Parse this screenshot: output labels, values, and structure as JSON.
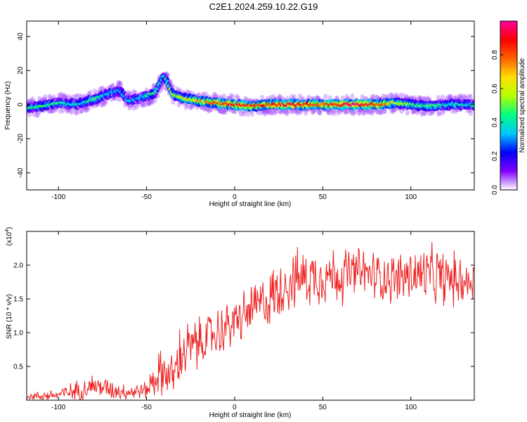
{
  "title": "C2E1.2024.259.10.22.G19",
  "chart_data": [
    {
      "type": "heatmap",
      "xlabel": "Height of straight line (km)",
      "ylabel": "Frequency (Hz)",
      "xlim": [
        -118,
        136
      ],
      "ylim": [
        -50,
        49
      ],
      "xticks": [
        -100,
        -50,
        0,
        50,
        100
      ],
      "yticks": [
        -40,
        -20,
        0,
        20,
        40
      ],
      "colorbar": {
        "label": "Normalized spectral amplitude",
        "range": [
          0,
          1
        ],
        "ticks": [
          "0.0",
          "0.2",
          "0.4",
          "0.6",
          "0.8"
        ],
        "tick_values": [
          0.0,
          0.2,
          0.4,
          0.6,
          0.8
        ],
        "colors": [
          "#ffffff",
          "#8000ff",
          "#0000ff",
          "#00c8ff",
          "#00ff80",
          "#b4ff00",
          "#ffe000",
          "#ff6000",
          "#ff0000",
          "#ff00a0"
        ]
      },
      "ridge": [
        {
          "x": -118,
          "f": -2,
          "a": 0.4
        },
        {
          "x": -110,
          "f": -1,
          "a": 0.45
        },
        {
          "x": -100,
          "f": 1,
          "a": 0.4
        },
        {
          "x": -90,
          "f": 0,
          "a": 0.35
        },
        {
          "x": -80,
          "f": 3,
          "a": 0.45
        },
        {
          "x": -70,
          "f": 7,
          "a": 0.35
        },
        {
          "x": -65,
          "f": 8,
          "a": 0.3
        },
        {
          "x": -60,
          "f": 2,
          "a": 0.3
        },
        {
          "x": -50,
          "f": 5,
          "a": 0.4
        },
        {
          "x": -45,
          "f": 7,
          "a": 0.45
        },
        {
          "x": -40,
          "f": 17,
          "a": 0.4
        },
        {
          "x": -35,
          "f": 6,
          "a": 0.5
        },
        {
          "x": -30,
          "f": 4,
          "a": 0.6
        },
        {
          "x": -20,
          "f": 2,
          "a": 0.7
        },
        {
          "x": -10,
          "f": 1,
          "a": 0.8
        },
        {
          "x": 0,
          "f": 0,
          "a": 0.85
        },
        {
          "x": 10,
          "f": -1,
          "a": 0.8
        },
        {
          "x": 20,
          "f": 0,
          "a": 0.85
        },
        {
          "x": 30,
          "f": 0,
          "a": 0.9
        },
        {
          "x": 40,
          "f": 0,
          "a": 0.85
        },
        {
          "x": 50,
          "f": 0,
          "a": 0.8
        },
        {
          "x": 60,
          "f": 0,
          "a": 0.9
        },
        {
          "x": 70,
          "f": 0,
          "a": 0.95
        },
        {
          "x": 80,
          "f": 0,
          "a": 0.85
        },
        {
          "x": 90,
          "f": 1,
          "a": 0.6
        },
        {
          "x": 100,
          "f": 0,
          "a": 0.5
        },
        {
          "x": 110,
          "f": -1,
          "a": 0.45
        },
        {
          "x": 120,
          "f": 0,
          "a": 0.4
        },
        {
          "x": 136,
          "f": 0,
          "a": 0.4
        }
      ]
    },
    {
      "type": "line",
      "xlabel": "Height of straight line (km)",
      "ylabel": "SNR (10 * v/v)",
      "y_multiplier": "(x10",
      "y_multiplier_exp": "4",
      "y_multiplier_close": ")",
      "xlim": [
        -118,
        136
      ],
      "ylim": [
        0,
        2.5
      ],
      "xticks": [
        -100,
        -50,
        0,
        50,
        100
      ],
      "yticks": [
        0.5,
        1.0,
        1.5,
        2.0
      ],
      "ytick_labels": [
        "0.5",
        "1.0",
        "1.5",
        "2.0"
      ],
      "color": "#ee2222",
      "envelope": [
        {
          "x": -118,
          "y": 0.05,
          "n": 0.04
        },
        {
          "x": -100,
          "y": 0.08,
          "n": 0.08
        },
        {
          "x": -90,
          "y": 0.14,
          "n": 0.12
        },
        {
          "x": -80,
          "y": 0.22,
          "n": 0.14
        },
        {
          "x": -70,
          "y": 0.16,
          "n": 0.12
        },
        {
          "x": -60,
          "y": 0.12,
          "n": 0.1
        },
        {
          "x": -50,
          "y": 0.15,
          "n": 0.1
        },
        {
          "x": -45,
          "y": 0.35,
          "n": 0.25
        },
        {
          "x": -40,
          "y": 0.42,
          "n": 0.3
        },
        {
          "x": -35,
          "y": 0.35,
          "n": 0.25
        },
        {
          "x": -30,
          "y": 0.7,
          "n": 0.4
        },
        {
          "x": -20,
          "y": 0.85,
          "n": 0.3
        },
        {
          "x": -10,
          "y": 1.0,
          "n": 0.3
        },
        {
          "x": 0,
          "y": 1.15,
          "n": 0.3
        },
        {
          "x": 10,
          "y": 1.35,
          "n": 0.3
        },
        {
          "x": 20,
          "y": 1.5,
          "n": 0.35
        },
        {
          "x": 30,
          "y": 1.75,
          "n": 0.35
        },
        {
          "x": 40,
          "y": 1.82,
          "n": 0.35
        },
        {
          "x": 50,
          "y": 1.85,
          "n": 0.35
        },
        {
          "x": 60,
          "y": 1.85,
          "n": 0.35
        },
        {
          "x": 70,
          "y": 1.9,
          "n": 0.3
        },
        {
          "x": 80,
          "y": 1.85,
          "n": 0.3
        },
        {
          "x": 90,
          "y": 1.8,
          "n": 0.3
        },
        {
          "x": 100,
          "y": 1.85,
          "n": 0.35
        },
        {
          "x": 110,
          "y": 1.85,
          "n": 0.35
        },
        {
          "x": 120,
          "y": 1.8,
          "n": 0.35
        },
        {
          "x": 136,
          "y": 1.75,
          "n": 0.25
        }
      ]
    }
  ]
}
